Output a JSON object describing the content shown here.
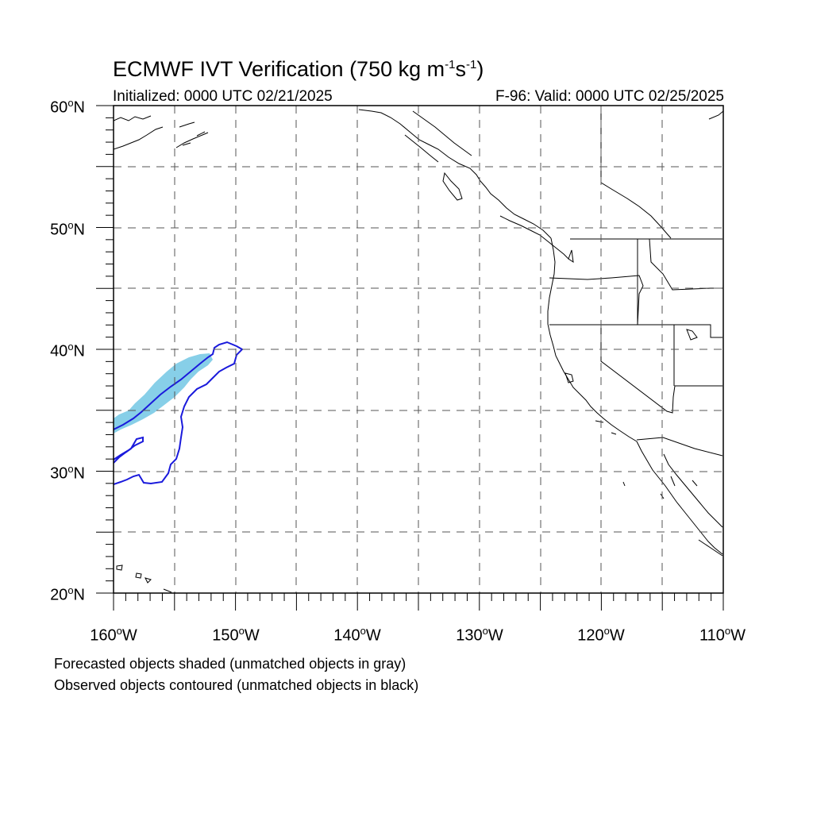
{
  "title": {
    "text_main": "ECMWF IVT Verification (750 kg m",
    "sup1": "-1",
    "mid": "s",
    "sup2": "-1",
    "close": ")"
  },
  "subtitle_left": "Initialized: 0000 UTC 02/21/2025",
  "subtitle_right": "F-96: Valid: 0000 UTC 02/25/2025",
  "lat_labels": [
    {
      "num": "60",
      "deg": "o",
      "hem": "N"
    },
    {
      "num": "50",
      "deg": "o",
      "hem": "N"
    },
    {
      "num": "40",
      "deg": "o",
      "hem": "N"
    },
    {
      "num": "30",
      "deg": "o",
      "hem": "N"
    },
    {
      "num": "20",
      "deg": "o",
      "hem": "N"
    }
  ],
  "lon_labels": [
    {
      "num": "160",
      "deg": "o",
      "hem": "W"
    },
    {
      "num": "150",
      "deg": "o",
      "hem": "W"
    },
    {
      "num": "140",
      "deg": "o",
      "hem": "W"
    },
    {
      "num": "130",
      "deg": "o",
      "hem": "W"
    },
    {
      "num": "120",
      "deg": "o",
      "hem": "W"
    },
    {
      "num": "110",
      "deg": "o",
      "hem": "W"
    }
  ],
  "footnote_1": "Forecasted objects shaded (unmatched objects in gray)",
  "footnote_2": "Observed objects contoured (unmatched objects in black)",
  "map": {
    "extent": {
      "lon_min": -160,
      "lon_max": -110,
      "lat_min": 20,
      "lat_max": 60
    },
    "grid_spacing_deg": 5,
    "forecast_fill_color": "#87cfe8",
    "observed_contour_color": "#1a1adc",
    "coastline_color": "#000000"
  }
}
